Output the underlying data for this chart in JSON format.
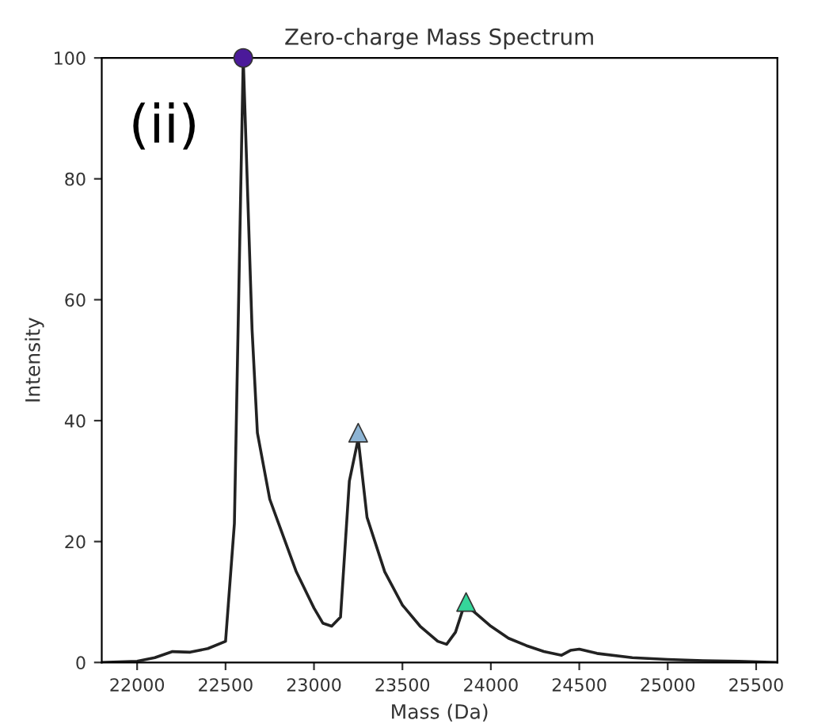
{
  "chart_data": {
    "type": "line",
    "title": "Zero-charge Mass Spectrum",
    "xlabel": "Mass (Da)",
    "ylabel": "Intensity",
    "annotations": [
      "(ii)"
    ],
    "xlim": [
      21800,
      25620
    ],
    "ylim": [
      0,
      100
    ],
    "xticks": [
      22000,
      22500,
      23000,
      23500,
      24000,
      24500,
      25000,
      25500
    ],
    "yticks": [
      0,
      20,
      40,
      60,
      80,
      100
    ],
    "grid": false,
    "series": [
      {
        "color": "#222222",
        "marker": "none",
        "line_style": "solid",
        "x": [
          21800,
          22000,
          22100,
          22200,
          22300,
          22400,
          22500,
          22550,
          22600,
          22650,
          22680,
          22750,
          22800,
          22900,
          23000,
          23050,
          23100,
          23150,
          23200,
          23250,
          23300,
          23400,
          23500,
          23600,
          23700,
          23750,
          23800,
          23850,
          23900,
          24000,
          24100,
          24200,
          24300,
          24400,
          24450,
          24500,
          24600,
          24800,
          25000,
          25200,
          25400,
          25620
        ],
        "values": [
          0,
          0.2,
          0.8,
          1.8,
          1.7,
          2.3,
          3.5,
          23,
          100,
          55,
          38,
          27,
          23,
          15,
          9,
          6.5,
          6,
          7.5,
          30,
          37,
          24,
          15,
          9.5,
          6,
          3.5,
          3,
          5,
          9.5,
          8.5,
          6,
          4,
          2.8,
          1.8,
          1.2,
          2,
          2.2,
          1.5,
          0.8,
          0.5,
          0.3,
          0.2,
          0
        ]
      },
      {
        "type": "scatter",
        "color": "#4b1a9a",
        "marker": "circle",
        "x": [
          22600
        ],
        "values": [
          100
        ]
      },
      {
        "type": "scatter",
        "color": "#8db4d4",
        "marker": "triangle",
        "x": [
          23250
        ],
        "values": [
          38
        ]
      },
      {
        "type": "scatter",
        "color": "#35d69a",
        "marker": "triangle",
        "x": [
          23860
        ],
        "values": [
          10
        ]
      }
    ]
  }
}
